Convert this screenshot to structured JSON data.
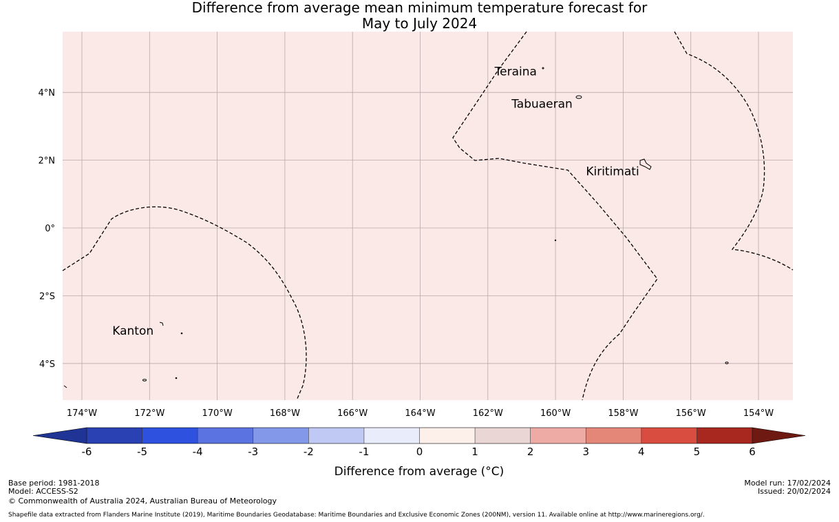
{
  "title": {
    "line1": "Difference from average mean minimum temperature forecast for",
    "line2": "May to July 2024"
  },
  "map": {
    "background_color": "#fbe9e8",
    "lat_labels": [
      {
        "lat": 4,
        "label": "4°N"
      },
      {
        "lat": 2,
        "label": "2°N"
      },
      {
        "lat": 0,
        "label": "0°"
      },
      {
        "lat": -2,
        "label": "2°S"
      },
      {
        "lat": -4,
        "label": "4°S"
      }
    ],
    "lon_labels": [
      {
        "lon": -174,
        "label": "174°W"
      },
      {
        "lon": -172,
        "label": "172°W"
      },
      {
        "lon": -170,
        "label": "170°W"
      },
      {
        "lon": -168,
        "label": "168°W"
      },
      {
        "lon": -166,
        "label": "166°W"
      },
      {
        "lon": -164,
        "label": "164°W"
      },
      {
        "lon": -162,
        "label": "162°W"
      },
      {
        "lon": -160,
        "label": "160°W"
      },
      {
        "lon": -158,
        "label": "158°W"
      },
      {
        "lon": -156,
        "label": "156°W"
      },
      {
        "lon": -154,
        "label": "154°W"
      }
    ],
    "places": [
      {
        "name": "Teraina",
        "lon": -161.8,
        "lat": 4.5
      },
      {
        "name": "Tabuaeran",
        "lon": -161.3,
        "lat": 3.55
      },
      {
        "name": "Kiritimati",
        "lon": -159.1,
        "lat": 1.55
      },
      {
        "name": "Kanton",
        "lon": -173.1,
        "lat": -3.15
      }
    ]
  },
  "legend": {
    "title": "Difference from average (°C)",
    "ticks": [
      "-6",
      "-5",
      "-4",
      "-3",
      "-2",
      "-1",
      "0",
      "1",
      "2",
      "3",
      "4",
      "5",
      "6"
    ],
    "colors": [
      "#1f3494",
      "#2a41b4",
      "#2f51e0",
      "#5b73e0",
      "#8498ea",
      "#c0c8f4",
      "#e9ecfb",
      "#fdf0eb",
      "#ead6d4",
      "#eeaaa5",
      "#e48678",
      "#d94c40",
      "#a8281f",
      "#6e1a12"
    ]
  },
  "footer": {
    "base_period": "Base period: 1981-2018",
    "model": "Model: ACCESS-S2",
    "copyright": "© Commonwealth of Australia 2024, Australian Bureau of Meteorology",
    "shapefile": "Shapefile data extracted from Flanders Marine Institute (2019), Maritime Boundaries Geodatabase: Maritime Boundaries and Exclusive Economic Zones (200NM), version 11. Available online at http://www.marineregions.org/.",
    "model_run": "Model run: 17/02/2024",
    "issued": "Issued: 20/02/2024"
  }
}
